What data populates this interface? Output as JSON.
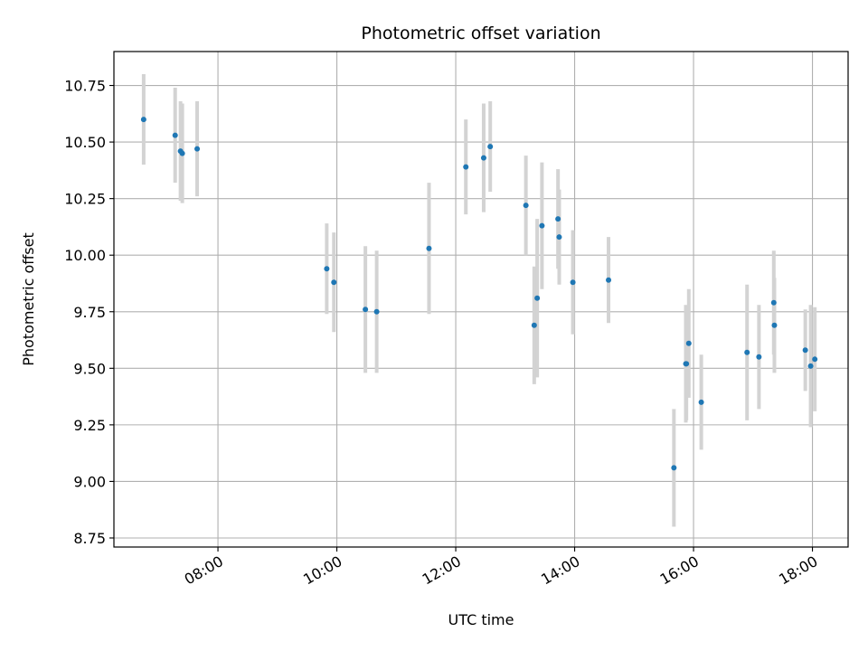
{
  "chart_data": {
    "type": "scatter",
    "title": "Photometric offset variation",
    "xlabel": "UTC time",
    "ylabel": "Photometric offset",
    "x_unit": "hours (UTC)",
    "xlim": [
      6.25,
      18.6
    ],
    "ylim": [
      8.71,
      10.9
    ],
    "x_ticks": [
      {
        "value": 8,
        "label": "08:00"
      },
      {
        "value": 10,
        "label": "10:00"
      },
      {
        "value": 12,
        "label": "12:00"
      },
      {
        "value": 14,
        "label": "14:00"
      },
      {
        "value": 16,
        "label": "16:00"
      },
      {
        "value": 18,
        "label": "18:00"
      }
    ],
    "y_ticks": [
      {
        "value": 8.75,
        "label": "8.75"
      },
      {
        "value": 9.0,
        "label": "9.00"
      },
      {
        "value": 9.25,
        "label": "9.25"
      },
      {
        "value": 9.5,
        "label": "9.50"
      },
      {
        "value": 9.75,
        "label": "9.75"
      },
      {
        "value": 10.0,
        "label": "10.00"
      },
      {
        "value": 10.25,
        "label": "10.25"
      },
      {
        "value": 10.5,
        "label": "10.50"
      },
      {
        "value": 10.75,
        "label": "10.75"
      }
    ],
    "grid": true,
    "legend": false,
    "colors": {
      "point": "#1f77b4",
      "errorbar": "#d3d3d3",
      "grid": "#b0b0b0"
    },
    "points": [
      {
        "x": 6.75,
        "y": 10.6,
        "yerr": 0.2
      },
      {
        "x": 7.28,
        "y": 10.53,
        "yerr": 0.21
      },
      {
        "x": 7.37,
        "y": 10.46,
        "yerr": 0.22
      },
      {
        "x": 7.4,
        "y": 10.45,
        "yerr": 0.22
      },
      {
        "x": 7.65,
        "y": 10.47,
        "yerr": 0.21
      },
      {
        "x": 9.83,
        "y": 9.94,
        "yerr": 0.2
      },
      {
        "x": 9.95,
        "y": 9.88,
        "yerr": 0.22
      },
      {
        "x": 10.48,
        "y": 9.76,
        "yerr": 0.28
      },
      {
        "x": 10.67,
        "y": 9.75,
        "yerr": 0.27
      },
      {
        "x": 11.55,
        "y": 10.03,
        "yerr": 0.29
      },
      {
        "x": 12.17,
        "y": 10.39,
        "yerr": 0.21
      },
      {
        "x": 12.47,
        "y": 10.43,
        "yerr": 0.24
      },
      {
        "x": 12.58,
        "y": 10.48,
        "yerr": 0.2
      },
      {
        "x": 13.18,
        "y": 10.22,
        "yerr": 0.22
      },
      {
        "x": 13.32,
        "y": 9.69,
        "yerr": 0.26
      },
      {
        "x": 13.37,
        "y": 9.81,
        "yerr": 0.35
      },
      {
        "x": 13.45,
        "y": 10.13,
        "yerr": 0.28
      },
      {
        "x": 13.72,
        "y": 10.16,
        "yerr": 0.22
      },
      {
        "x": 13.74,
        "y": 10.08,
        "yerr": 0.21
      },
      {
        "x": 13.97,
        "y": 9.88,
        "yerr": 0.23
      },
      {
        "x": 14.57,
        "y": 9.89,
        "yerr": 0.19
      },
      {
        "x": 15.67,
        "y": 9.06,
        "yerr": 0.26
      },
      {
        "x": 15.87,
        "y": 9.52,
        "yerr": 0.26
      },
      {
        "x": 15.88,
        "y": 9.52,
        "yerr": 0.25
      },
      {
        "x": 15.92,
        "y": 9.61,
        "yerr": 0.24
      },
      {
        "x": 16.13,
        "y": 9.35,
        "yerr": 0.21
      },
      {
        "x": 16.9,
        "y": 9.57,
        "yerr": 0.3
      },
      {
        "x": 17.1,
        "y": 9.55,
        "yerr": 0.23
      },
      {
        "x": 17.35,
        "y": 9.79,
        "yerr": 0.23
      },
      {
        "x": 17.36,
        "y": 9.69,
        "yerr": 0.21
      },
      {
        "x": 17.88,
        "y": 9.58,
        "yerr": 0.18
      },
      {
        "x": 17.97,
        "y": 9.51,
        "yerr": 0.27
      },
      {
        "x": 18.04,
        "y": 9.54,
        "yerr": 0.23
      }
    ]
  }
}
